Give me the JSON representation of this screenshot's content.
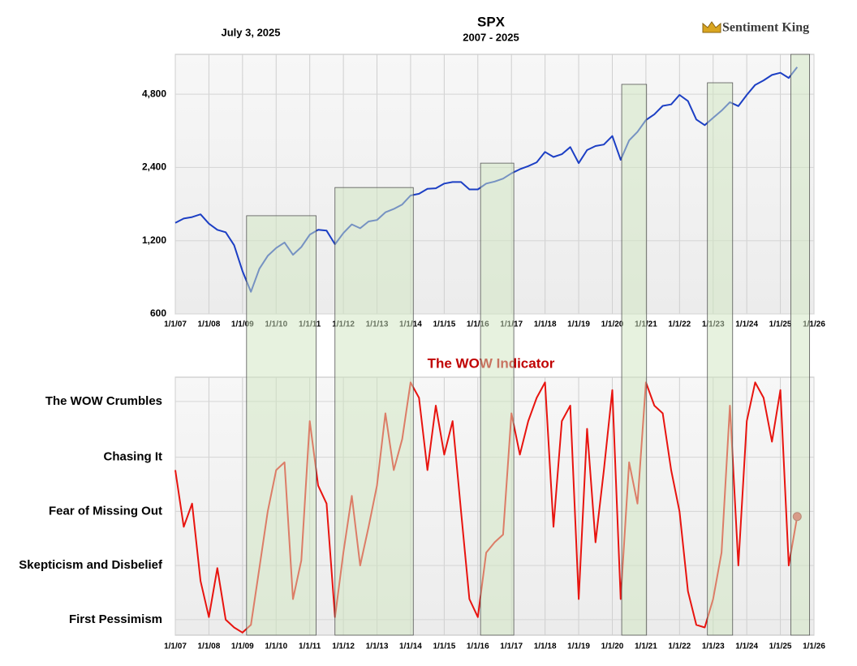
{
  "header": {
    "date": "July 3, 2025",
    "logo": "Sentiment King"
  },
  "chart_data": [
    {
      "type": "line",
      "title": "SPX",
      "subtitle": "2007 - 2025",
      "log_scale": true,
      "grid": true,
      "xlim": [
        2007,
        2026
      ],
      "xticks": [
        {
          "value": 2007,
          "label": "1/1/07"
        },
        {
          "value": 2008,
          "label": "1/1/08"
        },
        {
          "value": 2009,
          "label": "1/1/09"
        },
        {
          "value": 2010,
          "label": "1/1/10"
        },
        {
          "value": 2011,
          "label": "1/1/11"
        },
        {
          "value": 2012,
          "label": "1/1/12"
        },
        {
          "value": 2013,
          "label": "1/1/13"
        },
        {
          "value": 2014,
          "label": "1/1/14"
        },
        {
          "value": 2015,
          "label": "1/1/15"
        },
        {
          "value": 2016,
          "label": "1/1/16"
        },
        {
          "value": 2017,
          "label": "1/1/17"
        },
        {
          "value": 2018,
          "label": "1/1/18"
        },
        {
          "value": 2019,
          "label": "1/1/19"
        },
        {
          "value": 2020,
          "label": "1/1/20"
        },
        {
          "value": 2021,
          "label": "1/1/21"
        },
        {
          "value": 2022,
          "label": "1/1/22"
        },
        {
          "value": 2023,
          "label": "1/1/23"
        },
        {
          "value": 2024,
          "label": "1/1/24"
        },
        {
          "value": 2025,
          "label": "1/1/25"
        },
        {
          "value": 2026,
          "label": "1/1/26"
        }
      ],
      "ylim": [
        600,
        7000
      ],
      "yticks": [
        600,
        {
          "value": 1200,
          "label": "1,200"
        },
        {
          "value": 2400,
          "label": "2,400"
        },
        {
          "value": 4800,
          "label": "4,800"
        }
      ],
      "highlight_color": "#cfe5bf",
      "highlights": [
        {
          "start": 2009.12,
          "end": 2011.19,
          "top": 1520
        },
        {
          "start": 2011.75,
          "end": 2014.08,
          "top": 1985
        },
        {
          "start": 2016.08,
          "end": 2017.07,
          "top": 2500
        },
        {
          "start": 2020.28,
          "end": 2021.02,
          "top": 5270
        },
        {
          "start": 2022.83,
          "end": 2023.58,
          "top": 5350
        },
        {
          "start": 2025.31,
          "end": 2025.87,
          "top": 7000
        }
      ],
      "x": [
        2007,
        2007.25,
        2007.5,
        2007.75,
        2008,
        2008.25,
        2008.5,
        2008.75,
        2009,
        2009.25,
        2009.5,
        2009.75,
        2010,
        2010.25,
        2010.5,
        2010.75,
        2011,
        2011.25,
        2011.5,
        2011.75,
        2012,
        2012.25,
        2012.5,
        2012.75,
        2013,
        2013.25,
        2013.5,
        2013.75,
        2014,
        2014.25,
        2014.5,
        2014.75,
        2015,
        2015.25,
        2015.5,
        2015.75,
        2016,
        2016.25,
        2016.5,
        2016.75,
        2017,
        2017.25,
        2017.5,
        2017.75,
        2018,
        2018.25,
        2018.5,
        2018.75,
        2019,
        2019.25,
        2019.5,
        2019.75,
        2020,
        2020.25,
        2020.5,
        2020.75,
        2021,
        2021.25,
        2021.5,
        2021.75,
        2022,
        2022.25,
        2022.5,
        2022.75,
        2023,
        2023.25,
        2023.5,
        2023.75,
        2024,
        2024.25,
        2024.5,
        2024.75,
        2025,
        2025.25,
        2025.5
      ],
      "series": [
        {
          "color": "#1c3fc4",
          "values": [
            1420,
            1480,
            1500,
            1540,
            1410,
            1330,
            1300,
            1150,
            900,
            740,
            920,
            1040,
            1120,
            1180,
            1050,
            1130,
            1270,
            1330,
            1320,
            1160,
            1290,
            1400,
            1350,
            1440,
            1460,
            1570,
            1620,
            1690,
            1840,
            1870,
            1960,
            1970,
            2060,
            2090,
            2090,
            1950,
            1950,
            2060,
            2100,
            2160,
            2270,
            2360,
            2430,
            2520,
            2780,
            2650,
            2720,
            2910,
            2500,
            2830,
            2940,
            2980,
            3230,
            2580,
            3100,
            3360,
            3760,
            3970,
            4300,
            4360,
            4770,
            4500,
            3780,
            3580,
            3840,
            4110,
            4450,
            4290,
            4770,
            5240,
            5470,
            5760,
            5880,
            5600,
            6200
          ]
        }
      ]
    },
    {
      "type": "line",
      "title": "The WOW Indicator",
      "grid": true,
      "marker_last": true,
      "xlim": [
        2007,
        2026
      ],
      "xticks": [
        {
          "value": 2007,
          "label": "1/1/07"
        },
        {
          "value": 2008,
          "label": "1/1/08"
        },
        {
          "value": 2009,
          "label": "1/1/09"
        },
        {
          "value": 2010,
          "label": "1/1/10"
        },
        {
          "value": 2011,
          "label": "1/1/11"
        },
        {
          "value": 2012,
          "label": "1/1/12"
        },
        {
          "value": 2013,
          "label": "1/1/13"
        },
        {
          "value": 2014,
          "label": "1/1/14"
        },
        {
          "value": 2015,
          "label": "1/1/15"
        },
        {
          "value": 2016,
          "label": "1/1/16"
        },
        {
          "value": 2017,
          "label": "1/1/17"
        },
        {
          "value": 2018,
          "label": "1/1/18"
        },
        {
          "value": 2019,
          "label": "1/1/19"
        },
        {
          "value": 2020,
          "label": "1/1/20"
        },
        {
          "value": 2021,
          "label": "1/1/21"
        },
        {
          "value": 2022,
          "label": "1/1/22"
        },
        {
          "value": 2023,
          "label": "1/1/23"
        },
        {
          "value": 2024,
          "label": "1/1/24"
        },
        {
          "value": 2025,
          "label": "1/1/25"
        },
        {
          "value": 2026,
          "label": "1/1/26"
        }
      ],
      "ylim": [
        0,
        100
      ],
      "yticks": [
        {
          "value": 6,
          "label": "First Pessimism"
        },
        {
          "value": 27,
          "label": "Skepticism and Disbelief"
        },
        {
          "value": 48,
          "label": "Fear of Missing Out"
        },
        {
          "value": 69,
          "label": "Chasing It"
        },
        {
          "value": 90.6,
          "label": "The WOW Crumbles"
        }
      ],
      "x": [
        2007,
        2007.25,
        2007.5,
        2007.75,
        2008,
        2008.25,
        2008.5,
        2008.75,
        2009,
        2009.25,
        2009.5,
        2009.75,
        2010,
        2010.25,
        2010.5,
        2010.75,
        2011,
        2011.25,
        2011.5,
        2011.75,
        2012,
        2012.25,
        2012.5,
        2012.75,
        2013,
        2013.25,
        2013.5,
        2013.75,
        2014,
        2014.25,
        2014.5,
        2014.75,
        2015,
        2015.25,
        2015.5,
        2015.75,
        2016,
        2016.25,
        2016.5,
        2016.75,
        2017,
        2017.25,
        2017.5,
        2017.75,
        2018,
        2018.25,
        2018.5,
        2018.75,
        2019,
        2019.25,
        2019.5,
        2019.75,
        2020,
        2020.25,
        2020.5,
        2020.75,
        2021,
        2021.25,
        2021.5,
        2021.75,
        2022,
        2022.25,
        2022.5,
        2022.75,
        2023,
        2023.25,
        2023.5,
        2023.75,
        2024,
        2024.25,
        2024.5,
        2024.75,
        2025,
        2025.25,
        2025.5
      ],
      "series": [
        {
          "color": "#e8140f",
          "values": [
            64,
            42,
            51,
            21,
            7,
            26,
            6,
            3,
            1,
            4,
            26,
            48,
            64,
            67,
            14,
            29,
            83,
            58,
            51,
            7,
            32,
            54,
            27,
            42,
            58,
            86,
            64,
            76,
            98,
            92,
            64,
            89,
            70,
            83,
            48,
            14,
            7,
            32,
            36,
            39,
            86,
            70,
            83,
            92,
            98,
            42,
            83,
            89,
            14,
            80,
            36,
            64,
            95,
            14,
            67,
            51,
            98,
            89,
            86,
            64,
            48,
            17,
            4,
            3,
            14,
            32,
            89,
            27,
            83,
            98,
            92,
            75,
            95,
            27,
            46
          ]
        }
      ]
    }
  ]
}
